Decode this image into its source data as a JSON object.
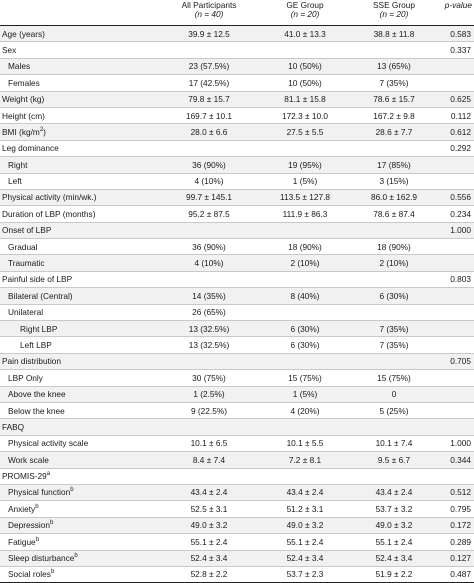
{
  "header": {
    "col_all": "All Participants",
    "col_all_n": "(n = 40)",
    "col_ge": "GE Group",
    "col_ge_n": "(n = 20)",
    "col_sse": "SSE Group",
    "col_sse_n": "(n = 20)",
    "col_p": "p-value"
  },
  "rows": [
    {
      "label": "Age (years)",
      "sup": "",
      "indent": 0,
      "all": "39.9 ± 12.5",
      "ge": "41.0 ± 13.3",
      "sse": "38.8 ± 11.8",
      "p": "0.583"
    },
    {
      "label": "Sex",
      "sup": "",
      "indent": 0,
      "all": "",
      "ge": "",
      "sse": "",
      "p": "0.337"
    },
    {
      "label": "Males",
      "sup": "",
      "indent": 1,
      "all": "23 (57.5%)",
      "ge": "10 (50%)",
      "sse": "13 (65%)",
      "p": ""
    },
    {
      "label": "Females",
      "sup": "",
      "indent": 1,
      "all": "17 (42.5%)",
      "ge": "10 (50%)",
      "sse": "7 (35%)",
      "p": ""
    },
    {
      "label": "Weight (kg)",
      "sup": "",
      "indent": 0,
      "all": "79.8 ± 15.7",
      "ge": "81.1 ± 15.8",
      "sse": "78.6 ± 15.7",
      "p": "0.625"
    },
    {
      "label": "Height (cm)",
      "sup": "",
      "indent": 0,
      "all": "169.7 ± 10.1",
      "ge": "172.3 ± 10.0",
      "sse": "167.2 ± 9.8",
      "p": "0.112"
    },
    {
      "label": "BMI (kg/m",
      "sup": "2",
      "suffix": ")",
      "indent": 0,
      "all": "28.0 ± 6.6",
      "ge": "27.5 ± 5.5",
      "sse": "28.6 ± 7.7",
      "p": "0.612"
    },
    {
      "label": "Leg dominance",
      "sup": "",
      "indent": 0,
      "all": "",
      "ge": "",
      "sse": "",
      "p": "0.292"
    },
    {
      "label": "Right",
      "sup": "",
      "indent": 1,
      "all": "36 (90%)",
      "ge": "19 (95%)",
      "sse": "17 (85%)",
      "p": ""
    },
    {
      "label": "Left",
      "sup": "",
      "indent": 1,
      "all": "4 (10%)",
      "ge": "1 (5%)",
      "sse": "3 (15%)",
      "p": ""
    },
    {
      "label": "Physical activity (min/wk.)",
      "sup": "",
      "indent": 0,
      "all": "99.7 ± 145.1",
      "ge": "113.5 ± 127.8",
      "sse": "86.0 ± 162.9",
      "p": "0.556"
    },
    {
      "label": "Duration of LBP (months)",
      "sup": "",
      "indent": 0,
      "all": "95.2 ± 87.5",
      "ge": "111.9 ± 86.3",
      "sse": "78.6 ± 87.4",
      "p": "0.234"
    },
    {
      "label": "Onset of LBP",
      "sup": "",
      "indent": 0,
      "all": "",
      "ge": "",
      "sse": "",
      "p": "1.000"
    },
    {
      "label": "Gradual",
      "sup": "",
      "indent": 1,
      "all": "36 (90%)",
      "ge": "18 (90%)",
      "sse": "18 (90%)",
      "p": ""
    },
    {
      "label": "Traumatic",
      "sup": "",
      "indent": 1,
      "all": "4 (10%)",
      "ge": "2 (10%)",
      "sse": "2 (10%)",
      "p": ""
    },
    {
      "label": "Painful side of LBP",
      "sup": "",
      "indent": 0,
      "all": "",
      "ge": "",
      "sse": "",
      "p": "0.803"
    },
    {
      "label": "Bilateral (Central)",
      "sup": "",
      "indent": 1,
      "all": "14 (35%)",
      "ge": "8 (40%)",
      "sse": "6 (30%)",
      "p": ""
    },
    {
      "label": "Unilateral",
      "sup": "",
      "indent": 1,
      "all": "26 (65%)",
      "ge": "",
      "sse": "",
      "p": ""
    },
    {
      "label": "Right LBP",
      "sup": "",
      "indent": 2,
      "all": "13 (32.5%)",
      "ge": "6 (30%)",
      "sse": "7 (35%)",
      "p": ""
    },
    {
      "label": "Left LBP",
      "sup": "",
      "indent": 2,
      "all": "13 (32.5%)",
      "ge": "6 (30%)",
      "sse": "7 (35%)",
      "p": ""
    },
    {
      "label": "Pain distribution",
      "sup": "",
      "indent": 0,
      "all": "",
      "ge": "",
      "sse": "",
      "p": "0.705"
    },
    {
      "label": "LBP Only",
      "sup": "",
      "indent": 1,
      "all": "30 (75%)",
      "ge": "15 (75%)",
      "sse": "15 (75%)",
      "p": ""
    },
    {
      "label": "Above the knee",
      "sup": "",
      "indent": 1,
      "all": "1 (2.5%)",
      "ge": "1 (5%)",
      "sse": "0",
      "p": ""
    },
    {
      "label": "Below the knee",
      "sup": "",
      "indent": 1,
      "all": "9 (22.5%)",
      "ge": "4 (20%)",
      "sse": "5 (25%)",
      "p": ""
    },
    {
      "label": "FABQ",
      "sup": "",
      "indent": 0,
      "all": "",
      "ge": "",
      "sse": "",
      "p": ""
    },
    {
      "label": "Physical activity scale",
      "sup": "",
      "indent": 1,
      "all": "10.1 ± 6.5",
      "ge": "10.1 ± 5.5",
      "sse": "10.1 ± 7.4",
      "p": "1.000"
    },
    {
      "label": "Work scale",
      "sup": "",
      "indent": 1,
      "all": "8.4 ± 7.4",
      "ge": "7.2 ± 8.1",
      "sse": "9.5 ± 6.7",
      "p": "0.344"
    },
    {
      "label": "PROMIS-29",
      "sup": "a",
      "indent": 0,
      "all": "",
      "ge": "",
      "sse": "",
      "p": ""
    },
    {
      "label": "Physical function",
      "sup": "b",
      "indent": 1,
      "all": "43.4 ± 2.4",
      "ge": "43.4 ± 2.4",
      "sse": "43.4 ± 2.4",
      "p": "0.512"
    },
    {
      "label": "Anxiety",
      "sup": "b",
      "indent": 1,
      "all": "52.5 ± 3.1",
      "ge": "51.2 ± 3.1",
      "sse": "53.7 ± 3.2",
      "p": "0.795"
    },
    {
      "label": "Depression",
      "sup": "b",
      "indent": 1,
      "all": "49.0 ± 3.2",
      "ge": "49.0 ± 3.2",
      "sse": "49.0 ± 3.2",
      "p": "0.172"
    },
    {
      "label": "Fatigue",
      "sup": "b",
      "indent": 1,
      "all": "55.1 ± 2.4",
      "ge": "55.1 ± 2.4",
      "sse": "55.1 ± 2.4",
      "p": "0.289"
    },
    {
      "label": "Sleep disturbance",
      "sup": "b",
      "indent": 1,
      "all": "52.4 ± 3.4",
      "ge": "52.4 ± 3.4",
      "sse": "52.4 ± 3.4",
      "p": "0.127"
    },
    {
      "label": "Social roles",
      "sup": "b",
      "indent": 1,
      "all": "52.8 ± 2.2",
      "ge": "53.7 ± 2.3",
      "sse": "51.9 ± 2.2",
      "p": "0.487"
    }
  ]
}
